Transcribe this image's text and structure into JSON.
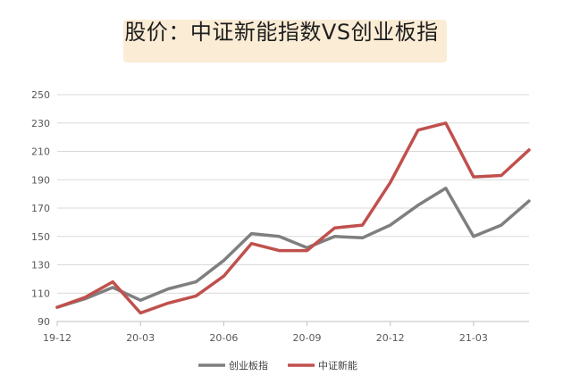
{
  "title": "股价：中证新能指数VS创业板指",
  "chart_data": {
    "type": "line",
    "title": "股价：中证新能指数VS创业板指",
    "xlabel": "",
    "ylabel": "",
    "ylim": [
      90,
      250
    ],
    "yticks": [
      90,
      110,
      130,
      150,
      170,
      190,
      210,
      230,
      250
    ],
    "grid": "horizontal",
    "legend_position": "bottom",
    "x_ticks": [
      "19-12",
      "20-03",
      "20-06",
      "20-09",
      "20-12",
      "21-03"
    ],
    "x": [
      "19-12",
      "20-01",
      "20-02",
      "20-03",
      "20-04",
      "20-05",
      "20-06",
      "20-07",
      "20-08",
      "20-09",
      "20-10",
      "20-11",
      "20-12",
      "21-01",
      "21-02",
      "21-03",
      "21-04",
      "21-05"
    ],
    "series": [
      {
        "name": "创业板指",
        "color": "#7f7f7f",
        "values": [
          100,
          106,
          114,
          105,
          113,
          118,
          133,
          152,
          150,
          142,
          150,
          149,
          158,
          172,
          184,
          150,
          158,
          175
        ]
      },
      {
        "name": "中证新能",
        "color": "#c0504d",
        "values": [
          100,
          107,
          118,
          96,
          103,
          108,
          122,
          145,
          140,
          140,
          156,
          158,
          188,
          225,
          230,
          192,
          193,
          211
        ]
      }
    ]
  },
  "colors": {
    "title_highlight": "#fbecd6",
    "grid": "#d9d9d9",
    "axis": "#bfbfbf"
  }
}
